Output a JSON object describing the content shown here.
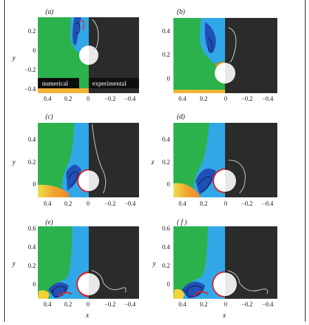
{
  "panels": [
    {
      "id": "a",
      "label": "(a)",
      "ylabel": "y",
      "xlabel": "",
      "yticks": [
        "0.2",
        "0",
        "−0.2",
        "−0.4"
      ],
      "xticks": [
        "0.4",
        "0.2",
        "0"
      ],
      "xticks_right": [
        "−0.2",
        "−0.4"
      ],
      "overlay_left": "numerical",
      "overlay_right": "experimental"
    },
    {
      "id": "b",
      "label": "(b)",
      "ylabel": "",
      "xlabel": "",
      "yticks": [
        "0.4",
        "0.2",
        "0"
      ],
      "xticks": [
        "0.4",
        "0.2",
        "0"
      ],
      "xticks_right": [
        "−0.2",
        "−0.4"
      ]
    },
    {
      "id": "c",
      "label": "(c)",
      "ylabel": "y",
      "xlabel": "",
      "yticks": [
        "0.4",
        "0.2",
        "0"
      ],
      "xticks": [
        "0.4",
        "0.2",
        "0"
      ],
      "xticks_right": [
        "−0.2",
        "−0.4"
      ]
    },
    {
      "id": "d",
      "label": "(d)",
      "ylabel": "z",
      "xlabel": "",
      "yticks": [
        "0.4",
        "0.2",
        "0"
      ],
      "xticks": [
        "0.4",
        "0.2",
        "0"
      ],
      "xticks_right": [
        "−0.2",
        "−0.4"
      ]
    },
    {
      "id": "e",
      "label": "(e)",
      "ylabel": "y",
      "xlabel": "x",
      "yticks": [
        "0.6",
        "0.4",
        "0.2",
        "0"
      ],
      "xticks": [
        "0.4",
        "0.2",
        "0"
      ],
      "xticks_right": [
        "−0.2",
        "−0.4"
      ]
    },
    {
      "id": "f",
      "label": "( f )",
      "ylabel": "y",
      "xlabel": "x",
      "yticks": [
        "0.6",
        "0.4",
        "0.2",
        "0"
      ],
      "xticks": [
        "0.4",
        "0.2",
        "0"
      ],
      "xticks_right": [
        "−0.2",
        "−0.4"
      ]
    }
  ],
  "colors": {
    "ambient": "#2bb24c",
    "plume_light": "#31a7e8",
    "plume_dark": "#1a3ea8",
    "warm_yellow": "#f2d23a",
    "warm_orange": "#f08a2a",
    "hot_red": "#d8262a",
    "sphere": "#ffffff",
    "experiment_bg": "#2b2b2b"
  }
}
